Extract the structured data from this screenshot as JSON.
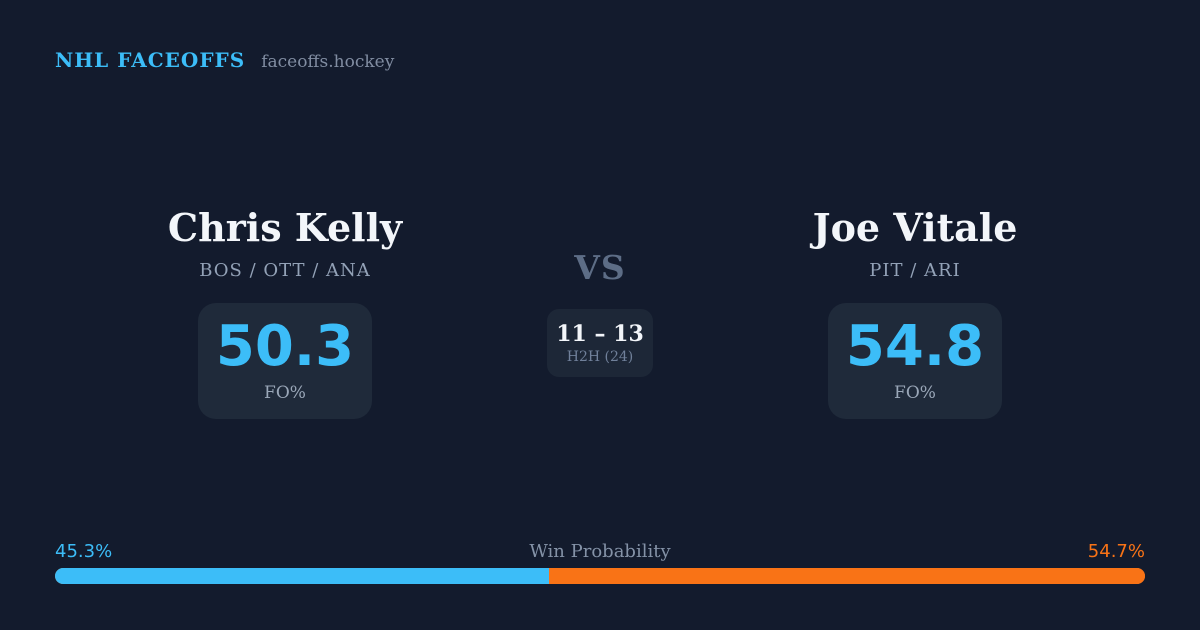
{
  "header": {
    "brand": "NHL FACEOFFS",
    "site": "faceoffs.hockey"
  },
  "players": [
    {
      "name": "Chris Kelly",
      "teams": "BOS / OTT / ANA",
      "fo_pct": "50.3",
      "fo_label": "FO%"
    },
    {
      "name": "Joe Vitale",
      "teams": "PIT / ARI",
      "fo_pct": "54.8",
      "fo_label": "FO%"
    }
  ],
  "center": {
    "vs": "VS",
    "h2h_score": "11 – 13",
    "h2h_label": "H2H (24)"
  },
  "win_probability": {
    "label": "Win Probability",
    "left_pct_text": "45.3%",
    "right_pct_text": "54.7%",
    "left_value": 45.3,
    "right_value": 54.7
  },
  "colors": {
    "background": "#131b2d",
    "card": "#1f2a3a",
    "accent_blue": "#3cbdf8",
    "accent_orange": "#f97316",
    "text_white": "#f3f6fa",
    "text_slate": "#93a2b7"
  }
}
